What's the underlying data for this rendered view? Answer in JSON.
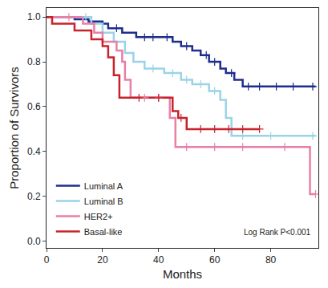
{
  "chart_data": {
    "type": "line",
    "x_label": "Months",
    "y_label": "Proportion of Survivors",
    "annotation": "Log Rank P<0.001",
    "xlim": [
      0,
      97
    ],
    "xticks": [
      0,
      20,
      40,
      60,
      80
    ],
    "ylim": [
      -0.03,
      1.04
    ],
    "yticks": [
      {
        "value": 0,
        "label": "0.0"
      },
      0.2,
      0.4,
      0.6,
      0.8,
      {
        "value": 1,
        "label": "1.0"
      }
    ],
    "grid": false,
    "legend": "lower left",
    "line_style": "step",
    "marker": "cross",
    "series": [
      {
        "name": "Luminal A",
        "color": "#1f2e8c",
        "x": [
          0,
          10,
          15,
          20,
          22,
          27,
          32,
          45,
          48,
          52,
          55,
          58,
          62,
          64,
          67,
          70,
          96
        ],
        "values": [
          1.0,
          0.99,
          0.98,
          0.97,
          0.95,
          0.93,
          0.91,
          0.89,
          0.87,
          0.85,
          0.83,
          0.8,
          0.77,
          0.75,
          0.72,
          0.69,
          0.69
        ],
        "censored_x": [
          25,
          35,
          38,
          43,
          50,
          57,
          60,
          66,
          72,
          76,
          82,
          88,
          95
        ],
        "censored_values": [
          0.95,
          0.91,
          0.91,
          0.91,
          0.87,
          0.83,
          0.8,
          0.75,
          0.69,
          0.69,
          0.69,
          0.69,
          0.69
        ]
      },
      {
        "name": "Luminal B",
        "color": "#9ad3e8",
        "x": [
          0,
          16,
          20,
          24,
          28,
          31,
          35,
          42,
          48,
          52,
          58,
          62,
          64,
          66,
          96
        ],
        "values": [
          1.0,
          0.97,
          0.93,
          0.89,
          0.84,
          0.8,
          0.77,
          0.75,
          0.72,
          0.7,
          0.67,
          0.63,
          0.55,
          0.47,
          0.47
        ],
        "censored_x": [
          14,
          38,
          45,
          50,
          55,
          60,
          70,
          80,
          95
        ],
        "censored_values": [
          1.0,
          0.77,
          0.75,
          0.72,
          0.7,
          0.67,
          0.47,
          0.47,
          0.47
        ]
      },
      {
        "name": "HER2+",
        "color": "#e87fa8",
        "x": [
          0,
          13,
          17,
          20,
          25,
          27,
          28,
          30,
          44,
          46,
          94,
          96
        ],
        "values": [
          1.0,
          0.97,
          0.93,
          0.89,
          0.85,
          0.8,
          0.72,
          0.64,
          0.55,
          0.42,
          0.21,
          0.21
        ],
        "censored_x": [
          8,
          35,
          40,
          50,
          60,
          70,
          85,
          96
        ],
        "censored_values": [
          1.0,
          0.64,
          0.64,
          0.42,
          0.42,
          0.42,
          0.42,
          0.21
        ]
      },
      {
        "name": "Basal-like",
        "color": "#c8232c",
        "x": [
          0,
          2,
          10,
          16,
          20,
          22,
          24,
          26,
          45,
          47,
          50,
          76
        ],
        "values": [
          1.0,
          0.97,
          0.94,
          0.9,
          0.87,
          0.82,
          0.74,
          0.64,
          0.58,
          0.55,
          0.5,
          0.5
        ],
        "censored_x": [
          33,
          40,
          48,
          55,
          60,
          65,
          70,
          76
        ],
        "censored_values": [
          0.64,
          0.64,
          0.55,
          0.5,
          0.5,
          0.5,
          0.5,
          0.5
        ]
      }
    ]
  }
}
